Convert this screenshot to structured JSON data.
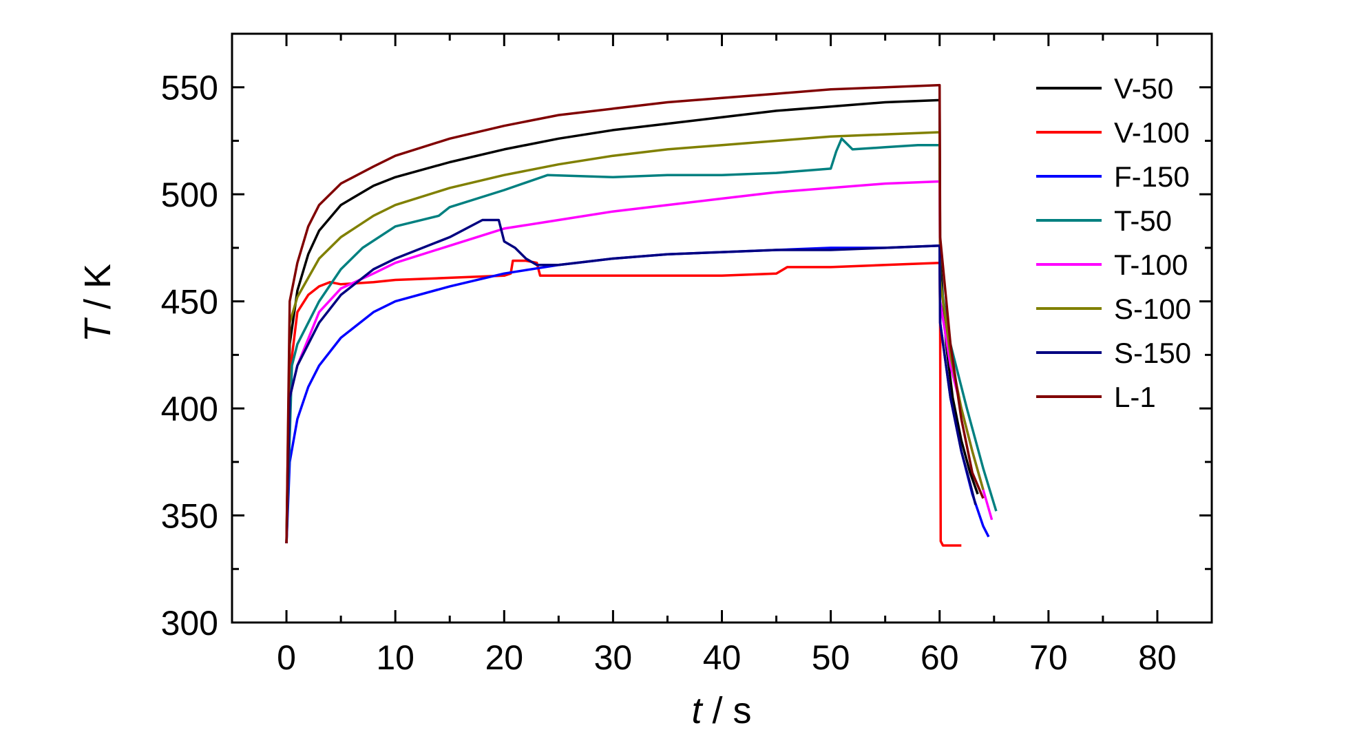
{
  "chart_data": {
    "type": "line",
    "xlabel": "t / s",
    "ylabel": "T / K",
    "xlabel_var": "t",
    "xlabel_unit": " / s",
    "ylabel_var": "T",
    "ylabel_unit": " / K",
    "xlim": [
      -5,
      85
    ],
    "ylim": [
      300,
      575
    ],
    "xticks": [
      0,
      10,
      20,
      30,
      40,
      50,
      60,
      70,
      80
    ],
    "yticks": [
      300,
      350,
      400,
      450,
      500,
      550
    ],
    "grid": false,
    "legend_position": "top-right",
    "series": [
      {
        "name": "V-50",
        "color": "#000000",
        "points": [
          [
            0,
            337
          ],
          [
            0.3,
            430
          ],
          [
            1,
            455
          ],
          [
            2,
            472
          ],
          [
            3,
            483
          ],
          [
            5,
            495
          ],
          [
            8,
            504
          ],
          [
            10,
            508
          ],
          [
            15,
            515
          ],
          [
            20,
            521
          ],
          [
            25,
            526
          ],
          [
            30,
            530
          ],
          [
            35,
            533
          ],
          [
            40,
            536
          ],
          [
            45,
            539
          ],
          [
            50,
            541
          ],
          [
            55,
            543
          ],
          [
            60,
            544
          ],
          [
            60.05,
            470
          ],
          [
            60.6,
            430
          ],
          [
            61.2,
            405
          ],
          [
            62,
            385
          ],
          [
            62.8,
            370
          ],
          [
            63.5,
            360
          ]
        ]
      },
      {
        "name": "V-100",
        "color": "#ff0000",
        "points": [
          [
            0,
            337
          ],
          [
            0.4,
            420
          ],
          [
            1,
            445
          ],
          [
            2,
            453
          ],
          [
            3,
            457
          ],
          [
            4,
            459
          ],
          [
            5,
            458
          ],
          [
            8,
            459
          ],
          [
            10,
            460
          ],
          [
            15,
            461
          ],
          [
            20,
            462
          ],
          [
            20.6,
            463
          ],
          [
            20.8,
            469
          ],
          [
            22,
            469
          ],
          [
            23,
            468
          ],
          [
            23.3,
            462
          ],
          [
            25,
            462
          ],
          [
            30,
            462
          ],
          [
            35,
            462
          ],
          [
            40,
            462
          ],
          [
            45,
            463
          ],
          [
            46,
            466
          ],
          [
            50,
            466
          ],
          [
            55,
            467
          ],
          [
            60,
            468
          ],
          [
            60.05,
            440
          ],
          [
            60.1,
            338
          ],
          [
            60.3,
            336
          ],
          [
            62,
            336
          ]
        ]
      },
      {
        "name": "F-150",
        "color": "#0000ff",
        "points": [
          [
            0,
            337
          ],
          [
            0.3,
            375
          ],
          [
            1,
            395
          ],
          [
            2,
            410
          ],
          [
            3,
            420
          ],
          [
            5,
            433
          ],
          [
            8,
            445
          ],
          [
            10,
            450
          ],
          [
            15,
            457
          ],
          [
            20,
            463
          ],
          [
            25,
            467
          ],
          [
            30,
            470
          ],
          [
            35,
            472
          ],
          [
            40,
            473
          ],
          [
            45,
            474
          ],
          [
            50,
            475
          ],
          [
            55,
            475
          ],
          [
            60,
            476
          ],
          [
            60.05,
            440
          ],
          [
            61,
            405
          ],
          [
            62,
            380
          ],
          [
            63,
            360
          ],
          [
            64,
            345
          ],
          [
            64.5,
            340
          ]
        ]
      },
      {
        "name": "T-50",
        "color": "#008080",
        "points": [
          [
            0,
            337
          ],
          [
            0.5,
            420
          ],
          [
            1,
            430
          ],
          [
            3,
            450
          ],
          [
            5,
            465
          ],
          [
            7,
            475
          ],
          [
            10,
            485
          ],
          [
            14,
            490
          ],
          [
            15,
            494
          ],
          [
            20,
            502
          ],
          [
            24,
            509
          ],
          [
            30,
            508
          ],
          [
            35,
            509
          ],
          [
            40,
            509
          ],
          [
            45,
            510
          ],
          [
            50,
            512
          ],
          [
            50.5,
            520
          ],
          [
            51,
            526
          ],
          [
            52,
            521
          ],
          [
            55,
            522
          ],
          [
            58,
            523
          ],
          [
            60,
            523
          ],
          [
            60.05,
            460
          ],
          [
            61,
            430
          ],
          [
            62.5,
            400
          ],
          [
            64,
            372
          ],
          [
            65.2,
            352
          ]
        ]
      },
      {
        "name": "T-100",
        "color": "#ff00ff",
        "points": [
          [
            0,
            337
          ],
          [
            0.3,
            405
          ],
          [
            1,
            420
          ],
          [
            3,
            445
          ],
          [
            5,
            456
          ],
          [
            8,
            463
          ],
          [
            10,
            468
          ],
          [
            15,
            476
          ],
          [
            20,
            484
          ],
          [
            25,
            488
          ],
          [
            30,
            492
          ],
          [
            35,
            495
          ],
          [
            40,
            498
          ],
          [
            45,
            501
          ],
          [
            50,
            503
          ],
          [
            55,
            505
          ],
          [
            60,
            506
          ],
          [
            60.05,
            450
          ],
          [
            61,
            420
          ],
          [
            62,
            400
          ],
          [
            63,
            380
          ],
          [
            64,
            362
          ],
          [
            64.8,
            348
          ]
        ]
      },
      {
        "name": "S-100",
        "color": "#808000",
        "points": [
          [
            0,
            337
          ],
          [
            0.3,
            440
          ],
          [
            1,
            452
          ],
          [
            3,
            470
          ],
          [
            5,
            480
          ],
          [
            8,
            490
          ],
          [
            10,
            495
          ],
          [
            15,
            503
          ],
          [
            20,
            509
          ],
          [
            25,
            514
          ],
          [
            30,
            518
          ],
          [
            35,
            521
          ],
          [
            40,
            523
          ],
          [
            45,
            525
          ],
          [
            50,
            527
          ],
          [
            55,
            528
          ],
          [
            60,
            529
          ],
          [
            60.05,
            460
          ],
          [
            61,
            425
          ],
          [
            62,
            400
          ],
          [
            63,
            380
          ],
          [
            64,
            362
          ]
        ]
      },
      {
        "name": "S-150",
        "color": "#000080",
        "points": [
          [
            0,
            337
          ],
          [
            0.3,
            405
          ],
          [
            1,
            420
          ],
          [
            3,
            440
          ],
          [
            5,
            453
          ],
          [
            8,
            465
          ],
          [
            10,
            470
          ],
          [
            15,
            480
          ],
          [
            18,
            488
          ],
          [
            19.5,
            488
          ],
          [
            20,
            478
          ],
          [
            21,
            475
          ],
          [
            22,
            470
          ],
          [
            23,
            467
          ],
          [
            25,
            467
          ],
          [
            30,
            470
          ],
          [
            35,
            472
          ],
          [
            40,
            473
          ],
          [
            45,
            474
          ],
          [
            50,
            474
          ],
          [
            55,
            475
          ],
          [
            60,
            476
          ],
          [
            60.05,
            440
          ],
          [
            61,
            405
          ],
          [
            62,
            380
          ],
          [
            62.8,
            365
          ],
          [
            63.3,
            355
          ]
        ]
      },
      {
        "name": "L-1",
        "color": "#800000",
        "points": [
          [
            0,
            337
          ],
          [
            0.3,
            450
          ],
          [
            1,
            468
          ],
          [
            2,
            485
          ],
          [
            3,
            495
          ],
          [
            5,
            505
          ],
          [
            8,
            513
          ],
          [
            10,
            518
          ],
          [
            15,
            526
          ],
          [
            20,
            532
          ],
          [
            25,
            537
          ],
          [
            30,
            540
          ],
          [
            35,
            543
          ],
          [
            40,
            545
          ],
          [
            45,
            547
          ],
          [
            50,
            549
          ],
          [
            55,
            550
          ],
          [
            60,
            551
          ],
          [
            60.05,
            480
          ],
          [
            61,
            430
          ],
          [
            62,
            395
          ],
          [
            63,
            370
          ],
          [
            64,
            358
          ]
        ]
      }
    ]
  }
}
